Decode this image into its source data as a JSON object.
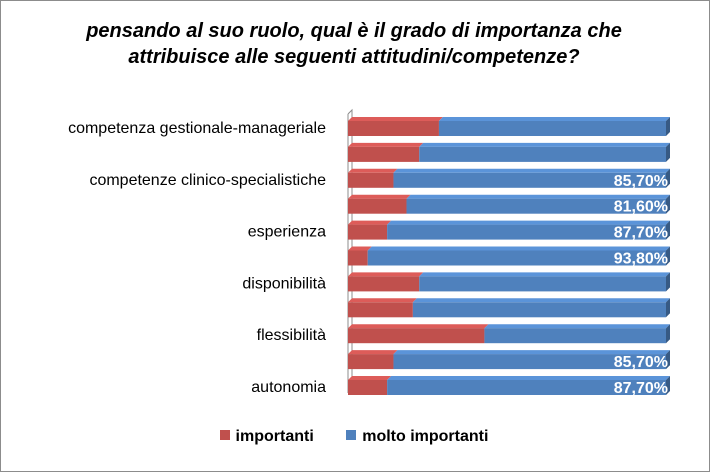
{
  "chart_data": {
    "type": "bar",
    "orientation": "horizontal",
    "stacked": "percent",
    "title": "pensando al suo ruolo, qual è il grado di importanza che attribuisce alle seguenti attitudini/competenze?",
    "title_lines": [
      "pensando al suo ruolo, qual è il grado di importanza che",
      "attribuisce alle seguenti attitudini/competenze?"
    ],
    "categories": [
      "competenza gestionale-manageriale",
      "",
      "competenze clinico-specialistiche",
      "",
      "esperienza",
      "",
      "disponibilità",
      "",
      "flessibilità",
      "",
      "autonomia"
    ],
    "series": [
      {
        "name": "importanti",
        "color": "#c0504d",
        "values": [
          28.6,
          22.4,
          14.3,
          18.4,
          12.3,
          6.2,
          22.4,
          20.4,
          42.9,
          14.3,
          12.3
        ]
      },
      {
        "name": "molto importanti",
        "color": "#4f81bd",
        "values": [
          71.4,
          77.6,
          85.7,
          81.6,
          87.7,
          93.8,
          77.6,
          79.6,
          57.1,
          85.7,
          87.7
        ]
      }
    ],
    "data_labels": [
      "",
      "",
      "85,70%",
      "81,60%",
      "87,70%",
      "93,80%",
      "",
      "",
      "",
      "85,70%",
      "87,70%"
    ],
    "xlim": [
      0,
      100
    ],
    "legend_position": "bottom",
    "grid": false
  }
}
